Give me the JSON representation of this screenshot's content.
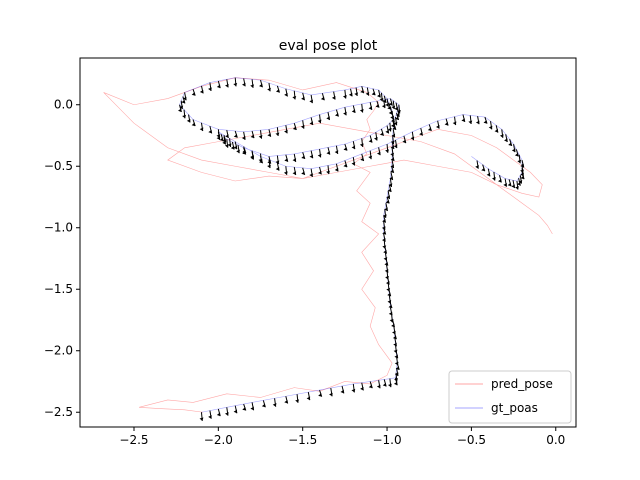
{
  "chart_data": {
    "type": "line",
    "title": "eval pose plot",
    "xlabel": "",
    "ylabel": "",
    "xlim": [
      -2.82,
      0.12
    ],
    "ylim": [
      -2.62,
      0.38
    ],
    "xticks": [
      -2.5,
      -2.0,
      -1.5,
      -1.0,
      -0.5,
      0.0
    ],
    "xtick_labels": [
      "−2.5",
      "−2.0",
      "−1.5",
      "−1.0",
      "−0.5",
      "0.0"
    ],
    "yticks": [
      0.0,
      -0.5,
      -1.0,
      -1.5,
      -2.0,
      -2.5
    ],
    "ytick_labels": [
      "0.0",
      "−0.5",
      "−1.0",
      "−1.5",
      "−2.0",
      "−2.5"
    ],
    "grid": false,
    "legend_position": "lower-right",
    "colors": {
      "pred_pose": "#ff0000",
      "gt_poas": "#0000ff",
      "arrows": "#000000"
    },
    "series": [
      {
        "name": "pred_pose",
        "x": [
          -2.09,
          -2.2,
          -2.35,
          -2.47,
          -2.3,
          -2.15,
          -1.95,
          -1.75,
          -1.55,
          -1.4,
          -1.25,
          -1.1,
          -1.0,
          -0.97,
          -1.05,
          -1.1,
          -1.07,
          -1.15,
          -1.08,
          -1.15,
          -1.05,
          -1.15,
          -1.1,
          -1.18,
          -1.1,
          -1.2,
          -1.12,
          -1.15,
          -1.1,
          -1.12,
          -1.08,
          -1.05,
          -1.12,
          -1.3,
          -1.5,
          -1.7,
          -1.9,
          -2.1,
          -2.3,
          -2.5,
          -2.68,
          -2.5,
          -2.3,
          -2.1,
          -1.9,
          -1.7,
          -1.5,
          -1.3,
          -1.1,
          -0.9,
          -0.7,
          -0.5,
          -0.35,
          -0.25,
          -0.15,
          -0.08,
          -0.1,
          -0.2,
          -0.35,
          -0.5,
          -0.7,
          -0.9,
          -1.1,
          -1.3,
          -1.5,
          -1.7,
          -1.9,
          -2.1,
          -2.3,
          -2.2,
          -2.0,
          -1.8,
          -1.6,
          -1.4,
          -1.2,
          -1.0,
          -0.8,
          -0.6,
          -0.45,
          -0.3,
          -0.2,
          -0.1,
          -0.05,
          -0.02
        ],
        "y": [
          -2.5,
          -2.48,
          -2.47,
          -2.46,
          -2.4,
          -2.42,
          -2.35,
          -2.38,
          -2.3,
          -2.33,
          -2.25,
          -2.27,
          -2.2,
          -2.1,
          -1.95,
          -1.8,
          -1.65,
          -1.5,
          -1.35,
          -1.2,
          -1.05,
          -0.95,
          -0.8,
          -0.7,
          -0.55,
          -0.48,
          -0.4,
          -0.3,
          -0.2,
          -0.12,
          -0.05,
          0.02,
          0.1,
          0.18,
          0.12,
          0.2,
          0.22,
          0.15,
          0.05,
          0.0,
          0.1,
          -0.15,
          -0.35,
          -0.45,
          -0.5,
          -0.55,
          -0.6,
          -0.5,
          -0.4,
          -0.3,
          -0.2,
          -0.25,
          -0.35,
          -0.45,
          -0.55,
          -0.65,
          -0.75,
          -0.72,
          -0.65,
          -0.55,
          -0.5,
          -0.45,
          -0.5,
          -0.55,
          -0.6,
          -0.58,
          -0.62,
          -0.55,
          -0.45,
          -0.35,
          -0.3,
          -0.25,
          -0.2,
          -0.15,
          -0.2,
          -0.25,
          -0.3,
          -0.4,
          -0.55,
          -0.7,
          -0.8,
          -0.9,
          -0.98,
          -1.05
        ]
      },
      {
        "name": "gt_poas",
        "x": [
          -2.1,
          -1.95,
          -1.8,
          -1.6,
          -1.4,
          -1.2,
          -1.05,
          -0.95,
          -0.94,
          -0.95,
          -0.96,
          -0.98,
          -0.99,
          -1.0,
          -1.01,
          -1.02,
          -1.02,
          -1.0,
          -0.98,
          -0.97,
          -0.97,
          -0.96,
          -0.97,
          -1.0,
          -1.05,
          -1.15,
          -1.25,
          -1.45,
          -1.6,
          -1.75,
          -1.9,
          -2.05,
          -2.2,
          -2.23,
          -2.15,
          -2.0,
          -1.85,
          -1.7,
          -1.55,
          -1.4,
          -1.25,
          -1.1,
          -0.98,
          -0.93,
          -0.95,
          -1.0,
          -1.1,
          -1.25,
          -1.4,
          -1.55,
          -1.7,
          -1.85,
          -1.95,
          -2.0,
          -1.9,
          -1.75,
          -1.6,
          -1.45,
          -1.3,
          -1.15,
          -1.0,
          -0.85,
          -0.7,
          -0.55,
          -0.42,
          -0.32,
          -0.25,
          -0.2,
          -0.2,
          -0.23,
          -0.3,
          -0.4,
          -0.5
        ],
        "y": [
          -2.5,
          -2.46,
          -2.42,
          -2.37,
          -2.32,
          -2.27,
          -2.24,
          -2.22,
          -2.1,
          -1.95,
          -1.8,
          -1.65,
          -1.5,
          -1.35,
          -1.2,
          -1.05,
          -0.9,
          -0.75,
          -0.6,
          -0.45,
          -0.3,
          -0.15,
          -0.05,
          0.05,
          0.12,
          0.15,
          0.12,
          0.08,
          0.13,
          0.2,
          0.22,
          0.18,
          0.1,
          0.0,
          -0.12,
          -0.2,
          -0.22,
          -0.2,
          -0.15,
          -0.08,
          -0.02,
          0.02,
          0.05,
          0.0,
          -0.1,
          -0.17,
          -0.25,
          -0.32,
          -0.36,
          -0.4,
          -0.42,
          -0.35,
          -0.28,
          -0.22,
          -0.3,
          -0.42,
          -0.5,
          -0.52,
          -0.48,
          -0.4,
          -0.32,
          -0.22,
          -0.13,
          -0.08,
          -0.1,
          -0.2,
          -0.32,
          -0.45,
          -0.55,
          -0.62,
          -0.6,
          -0.52,
          -0.42
        ]
      }
    ]
  }
}
